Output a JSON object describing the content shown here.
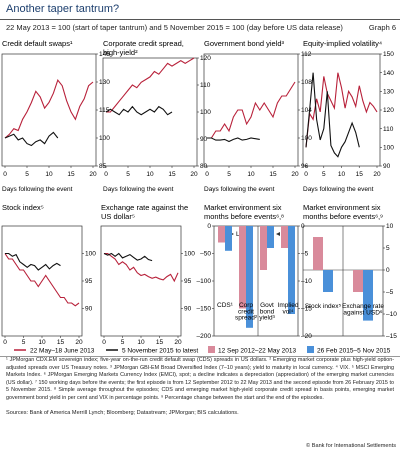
{
  "header": {
    "title": "Another taper tantrum?",
    "subtitle": "22 May 2013 = 100 (start of taper tantrum) and 5 November 2015 = 100 (day before US data release)",
    "graph_label": "Graph 6"
  },
  "panels": [
    {
      "title_lines": [
        "Credit default swaps¹"
      ],
      "ylim": [
        85,
        145
      ],
      "yticks": [
        "145",
        "130",
        "115",
        "100",
        "85"
      ],
      "xticks": [
        "0",
        "5",
        "10",
        "15",
        "20"
      ],
      "xlabel": "Days following the event"
    },
    {
      "title_lines": [
        "Corporate credit spread,",
        "high-yield²"
      ],
      "ylim": [
        80,
        120
      ],
      "yticks": [
        "120",
        "110",
        "100",
        "90",
        "80"
      ],
      "xticks": [
        "0",
        "5",
        "10",
        "15",
        "20"
      ],
      "xlabel": "Days following the event"
    },
    {
      "title_lines": [
        "Government bond yield³"
      ],
      "ylim": [
        96,
        112
      ],
      "yticks": [
        "112",
        "108",
        "104",
        "100",
        "96"
      ],
      "xticks": [
        "0",
        "5",
        "10",
        "15",
        "20"
      ],
      "xlabel": "Days following the event"
    },
    {
      "title_lines": [
        "Equity-implied volatility⁴"
      ],
      "ylim": [
        90,
        150
      ],
      "yticks": [
        "150",
        "140",
        "130",
        "120",
        "110",
        "100",
        "90"
      ],
      "xticks": [
        "0",
        "5",
        "10",
        "15",
        "20"
      ],
      "xlabel": "Days following the event"
    },
    {
      "title_lines": [
        "Stock index⁵"
      ],
      "ylim": [
        85,
        105
      ],
      "yticks": [
        "100",
        "95",
        "90"
      ],
      "xticks": [
        "0",
        "5",
        "10",
        "15",
        "20"
      ],
      "xlabel": "Days following the event"
    },
    {
      "title_lines": [
        "Exchange rate against the",
        "US dollar⁵"
      ],
      "ylim": [
        85,
        105
      ],
      "yticks": [
        "100",
        "95",
        "90"
      ],
      "xticks": [
        "0",
        "5",
        "10",
        "15",
        "20"
      ],
      "xlabel": "Days following the event"
    },
    {
      "title_lines": [
        "Market environment six",
        "months before events⁶‚⁸"
      ]
    },
    {
      "title_lines": [
        "Market environment six",
        "months before events⁶‚⁹"
      ]
    }
  ],
  "chart_data": [
    {
      "type": "line",
      "title": "Credit default swaps",
      "xlabel": "Days following the event",
      "x": [
        0,
        1,
        2,
        3,
        4,
        5,
        6,
        7,
        8,
        9,
        10,
        11,
        12,
        13,
        14,
        15,
        16,
        17,
        18,
        19,
        20
      ],
      "xlim": [
        0,
        20
      ],
      "ylim": [
        85,
        145
      ],
      "series": [
        {
          "name": "22 May–18 June 2013",
          "color": "#b8213a",
          "values": [
            100,
            102,
            105,
            104,
            110,
            114,
            119,
            125,
            122,
            116,
            119,
            124,
            131,
            128,
            120,
            114,
            110,
            117,
            121,
            128,
            130
          ]
        },
        {
          "name": "5 November 2015 to latest",
          "color": "#111111",
          "values": [
            100,
            101,
            102,
            99,
            100,
            97,
            96,
            98,
            99,
            97,
            101,
            103,
            100,
            null,
            null,
            null,
            null,
            null,
            null,
            null,
            null
          ]
        }
      ]
    },
    {
      "type": "line",
      "title": "Corporate credit spread, high-yield",
      "xlabel": "Days following the event",
      "x": [
        0,
        1,
        2,
        3,
        4,
        5,
        6,
        7,
        8,
        9,
        10,
        11,
        12,
        13,
        14,
        15,
        16,
        17,
        18,
        19,
        20
      ],
      "xlim": [
        0,
        20
      ],
      "ylim": [
        80,
        120
      ],
      "series": [
        {
          "name": "22 May–18 June 2013",
          "color": "#b8213a",
          "values": [
            100,
            100,
            102,
            104,
            106,
            108,
            110,
            109,
            111,
            112,
            113,
            115,
            114,
            116,
            118,
            117,
            118,
            119,
            118,
            119,
            120
          ]
        },
        {
          "name": "5 November 2015 to latest",
          "color": "#111111",
          "values": [
            100,
            101,
            100,
            99,
            101,
            100,
            102,
            100,
            99,
            100,
            101,
            100,
            102,
            101,
            99,
            100,
            null,
            null,
            null,
            null,
            null
          ]
        }
      ]
    },
    {
      "type": "line",
      "title": "Government bond yield",
      "xlabel": "Days following the event",
      "x": [
        0,
        1,
        2,
        3,
        4,
        5,
        6,
        7,
        8,
        9,
        10,
        11,
        12,
        13,
        14,
        15,
        16,
        17,
        18,
        19,
        20
      ],
      "xlim": [
        0,
        20
      ],
      "ylim": [
        96,
        112
      ],
      "series": [
        {
          "name": "22 May–18 June 2013",
          "color": "#b8213a",
          "values": [
            100,
            100,
            101,
            101,
            102,
            101,
            103,
            104,
            104,
            102,
            103,
            105,
            104,
            105,
            104,
            103,
            105,
            106,
            106,
            107,
            108
          ]
        },
        {
          "name": "5 November 2015 to latest",
          "color": "#111111",
          "values": [
            100,
            100,
            99.7,
            99.7,
            99.8,
            99.5,
            99.8,
            100,
            99.7,
            99.8,
            100,
            99.9,
            99.8,
            null,
            null,
            null,
            null,
            null,
            null,
            null,
            null
          ]
        }
      ]
    },
    {
      "type": "line",
      "title": "Equity-implied volatility",
      "xlabel": "Days following the event",
      "x": [
        0,
        1,
        2,
        3,
        4,
        5,
        6,
        7,
        8,
        9,
        10,
        11,
        12,
        13,
        14,
        15,
        16,
        17,
        18,
        19,
        20
      ],
      "xlim": [
        0,
        20
      ],
      "ylim": [
        90,
        150
      ],
      "series": [
        {
          "name": "22 May–18 June 2013",
          "color": "#b8213a",
          "values": [
            100,
            118,
            115,
            126,
            119,
            138,
            129,
            125,
            121,
            140,
            132,
            121,
            130,
            127,
            122,
            133,
            125,
            119,
            124,
            122,
            119
          ]
        },
        {
          "name": "5 November 2015 to latest",
          "color": "#111111",
          "values": [
            100,
            120,
            140,
            115,
            104,
            110,
            130,
            101,
            97,
            95,
            100,
            103,
            108,
            113,
            108,
            100,
            null,
            null,
            null,
            null,
            null
          ]
        }
      ]
    },
    {
      "type": "line",
      "title": "Stock index",
      "xlabel": "Days following the event",
      "x": [
        0,
        1,
        2,
        3,
        4,
        5,
        6,
        7,
        8,
        9,
        10,
        11,
        12,
        13,
        14,
        15,
        16,
        17,
        18,
        19,
        20
      ],
      "xlim": [
        0,
        20
      ],
      "ylim": [
        85,
        105
      ],
      "series": [
        {
          "name": "22 May–18 June 2013",
          "color": "#b8213a",
          "values": [
            100,
            99,
            99,
            98,
            97,
            97,
            96,
            95,
            95,
            94,
            95,
            96,
            95,
            94,
            93,
            92,
            92,
            91,
            91,
            90.5,
            91
          ]
        },
        {
          "name": "5 November 2015 to latest",
          "color": "#111111",
          "values": [
            100,
            100,
            99.5,
            99.8,
            98.5,
            98,
            97.5,
            98,
            97.8,
            97,
            97.5,
            98,
            97.2,
            97.8,
            98.2,
            97.8,
            null,
            null,
            null,
            null,
            null
          ]
        }
      ]
    },
    {
      "type": "line",
      "title": "Exchange rate against the US dollar",
      "xlabel": "Days following the event",
      "x": [
        0,
        1,
        2,
        3,
        4,
        5,
        6,
        7,
        8,
        9,
        10,
        11,
        12,
        13,
        14,
        15,
        16,
        17,
        18,
        19,
        20
      ],
      "xlim": [
        0,
        20
      ],
      "ylim": [
        85,
        105
      ],
      "series": [
        {
          "name": "22 May–18 June 2013",
          "color": "#b8213a",
          "values": [
            100,
            100,
            99.5,
            99,
            98,
            98.5,
            98,
            97,
            97.5,
            96.5,
            96,
            96.2,
            95.8,
            95.5,
            95.7,
            95.4,
            95.2,
            95.8,
            96.2,
            95,
            96.5
          ]
        },
        {
          "name": "5 November 2015 to latest",
          "color": "#111111",
          "values": [
            100,
            99.7,
            100,
            99.5,
            100,
            99.2,
            99.5,
            99.8,
            99.3,
            98.8,
            99,
            99.5,
            98.9,
            98.7,
            null,
            null,
            null,
            null,
            null,
            null,
            null
          ]
        }
      ]
    },
    {
      "type": "bar",
      "title": "Market environment six months before events",
      "categories": [
        "CDS¹",
        "Corp credit spread²",
        "Govt bond yield³",
        "Implied vol⁴"
      ],
      "lhs_label": "Lhs",
      "rhs_label": "Rhs",
      "lhs_ylim": [
        -200,
        0
      ],
      "rhs_ylim": [
        -20,
        0
      ],
      "lhs_ticks": [
        "0",
        "–50",
        "–100",
        "–150",
        "–200"
      ],
      "rhs_ticks": [
        "0",
        "–5",
        "–10",
        "–15",
        "–20"
      ],
      "series": [
        {
          "name": "12 Sep 2012–22 May 2013",
          "color": "#d98a9b",
          "values": [
            -30,
            -150,
            -8,
            -4
          ]
        },
        {
          "name": "26 Feb 2015–5 Nov 2015",
          "color": "#4a90d9",
          "values": [
            -45,
            -185,
            -4,
            -16
          ]
        }
      ]
    },
    {
      "type": "bar",
      "title": "Market environment six months before events",
      "categories": [
        "Stock index⁵",
        "Exchange rate against USD⁵"
      ],
      "ylim": [
        -15,
        10
      ],
      "yticks": [
        "10",
        "5",
        "0",
        "–5",
        "–10",
        "–15"
      ],
      "series": [
        {
          "name": "12 Sep 2012–22 May 2013",
          "color": "#d98a9b",
          "values": [
            7.5,
            -5
          ]
        },
        {
          "name": "26 Feb 2015–5 Nov 2015",
          "color": "#4a90d9",
          "values": [
            -5,
            -11.5
          ]
        }
      ]
    }
  ],
  "legend_lines": {
    "a": "22 May–18 June 2013",
    "b": "5 November 2015 to latest"
  },
  "legend_bars": {
    "a": "12 Sep 2012–22 May 2013",
    "b": "26 Feb 2015–5 Nov 2015"
  },
  "footnotes": "¹ JPMorgan CDX.EM sovereign index; five-year on-the-run credit default swap (CDS) spreads in US dollars. ² Emerging market corporate plus high-yield option-adjusted spreads over US Treasury notes. ³ JPMorgan GBI-EM Broad Diversified Index (7–10 years); yield to maturity in local currency. ⁴ VIX. ⁵ MSCI Emerging Markets Index. ⁶ JPMorgan Emerging Markets Currency Index (EMCI), spot; a decline indicates a depreciation (appreciation) of the emerging market currencies (US dollar). ⁷ 150 working days before the events; the first episode is from 12 September 2012 to 22 May 2013 and the second episode from 26 February 2015 to 5 November 2015. ⁸ Simple average throughout the episodes; CDS and emerging market high-yield corporate credit spread in basis points, emerging market government bond yield in per cent and VIX in percentage points. ⁹ Percentage change between the start and the end of the episodes.",
  "sources": "Sources: Bank of America Merrill Lynch; Bloomberg; Datastream; JPMorgan; BIS calculations.",
  "copyright": "© Bank for International Settlements"
}
